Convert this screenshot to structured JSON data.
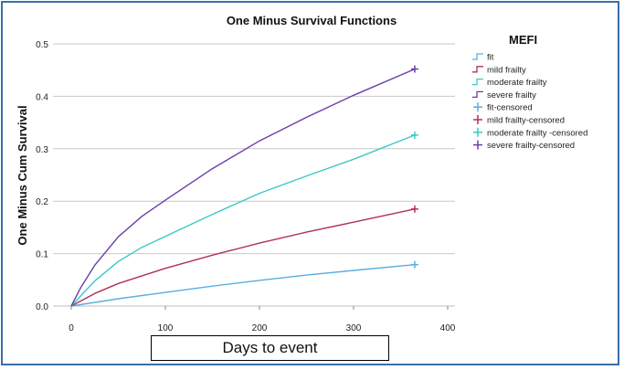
{
  "chart_data": {
    "type": "line",
    "title": "One Minus Survival Functions",
    "xlabel": "Days to event",
    "ylabel": "One Minus Cum Survival",
    "xlim": [
      0,
      400
    ],
    "ylim": [
      0,
      0.5
    ],
    "xticks": [
      "0",
      "100",
      "200",
      "300",
      "400"
    ],
    "yticks": [
      "0.0",
      "0.1",
      "0.2",
      "0.3",
      "0.4",
      "0.5"
    ],
    "xtick_values": [
      0,
      100,
      200,
      300,
      400
    ],
    "ytick_values": [
      0,
      0.1,
      0.2,
      0.3,
      0.4,
      0.5
    ],
    "grid": "horizontal",
    "legend_title": "MEFI",
    "legend": [
      "fit",
      "mild frailty",
      "moderate frailty",
      "severe frailty",
      "fit-censored",
      "mild frailty-censored",
      "moderate frailty -censored",
      "severe frailty-censored"
    ],
    "series": [
      {
        "name": "fit",
        "color": "#5aaee0",
        "x": [
          0,
          50,
          100,
          150,
          200,
          250,
          300,
          365
        ],
        "values": [
          0,
          0.014,
          0.026,
          0.038,
          0.049,
          0.059,
          0.068,
          0.079
        ],
        "censored_at": [
          365,
          0.079
        ]
      },
      {
        "name": "mild frailty",
        "color": "#b0305a",
        "x": [
          0,
          25,
          50,
          100,
          150,
          200,
          250,
          300,
          365
        ],
        "values": [
          0,
          0.024,
          0.043,
          0.072,
          0.097,
          0.12,
          0.141,
          0.16,
          0.185
        ],
        "censored_at": [
          365,
          0.185
        ]
      },
      {
        "name": "moderate frailty",
        "color": "#3cc9c4",
        "x": [
          0,
          25,
          50,
          75,
          100,
          150,
          200,
          250,
          300,
          365
        ],
        "values": [
          0,
          0.048,
          0.085,
          0.112,
          0.133,
          0.175,
          0.215,
          0.248,
          0.28,
          0.326
        ],
        "censored_at": [
          365,
          0.326
        ]
      },
      {
        "name": "severe frailty",
        "color": "#6a3ea8",
        "x": [
          0,
          10,
          25,
          50,
          75,
          100,
          150,
          200,
          250,
          300,
          365
        ],
        "values": [
          0,
          0.035,
          0.078,
          0.132,
          0.171,
          0.202,
          0.262,
          0.315,
          0.36,
          0.402,
          0.452
        ],
        "censored_at": [
          365,
          0.452
        ]
      }
    ]
  }
}
